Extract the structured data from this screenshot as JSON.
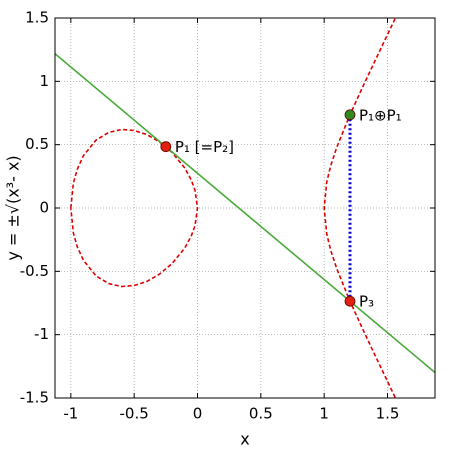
{
  "chart_data": {
    "type": "line",
    "xlabel": "x",
    "ylabel": "y = ±√(x³- x)",
    "xlim": [
      -1.125,
      1.875
    ],
    "ylim": [
      -1.5,
      1.5
    ],
    "xticks": [
      -1,
      -0.5,
      0,
      0.5,
      1,
      1.5
    ],
    "yticks": [
      -1.5,
      -1,
      -0.5,
      0,
      0.5,
      1,
      1.5
    ],
    "grid": true,
    "series": [
      {
        "color": "#e00000",
        "dash": true,
        "x": [
          -1,
          -0.98,
          -0.95,
          -0.9,
          -0.8,
          -0.7,
          -0.6,
          -0.5,
          -0.4,
          -0.3,
          -0.2,
          -0.1,
          -0.05,
          -0.02,
          0,
          -0.02,
          -0.05,
          -0.1,
          -0.2,
          -0.3,
          -0.4,
          -0.5,
          -0.6,
          -0.7,
          -0.8,
          -0.9,
          -0.95,
          -0.98,
          -1,
          null,
          1.56,
          1.5,
          1.4,
          1.3,
          1.2,
          1.1,
          1.05,
          1.02,
          1,
          1.02,
          1.05,
          1.1,
          1.2,
          1.3,
          1.4,
          1.5,
          1.56
        ],
        "values": [
          0,
          0.197,
          0.304,
          0.414,
          0.537,
          0.597,
          0.62,
          0.612,
          0.58,
          0.522,
          0.438,
          0.315,
          0.223,
          0.141,
          0,
          -0.141,
          -0.223,
          -0.315,
          -0.438,
          -0.522,
          -0.58,
          -0.612,
          -0.62,
          -0.597,
          -0.537,
          -0.414,
          -0.304,
          -0.197,
          0,
          null,
          -1.495,
          -1.369,
          -1.159,
          -0.947,
          -0.727,
          -0.481,
          -0.328,
          -0.203,
          0,
          0.203,
          0.328,
          0.481,
          0.727,
          0.947,
          1.159,
          1.369,
          1.495
        ]
      },
      {
        "color": "#4aaa3a",
        "dash": false,
        "x": [
          -1.125,
          1.875
        ],
        "values": [
          1.218,
          -1.299
        ]
      },
      {
        "color": "#0000dd",
        "dash": true,
        "dotted": true,
        "x": [
          1.204,
          1.204
        ],
        "values": [
          -0.736,
          0.736
        ]
      }
    ],
    "points": [
      {
        "label": "P₁ [=P₂]",
        "x": -0.25,
        "y": 0.484,
        "color": "#e02010"
      },
      {
        "label": "P₁⊕P₁",
        "x": 1.204,
        "y": 0.736,
        "color": "#2e8b20"
      },
      {
        "label": "P₃",
        "x": 1.204,
        "y": -0.736,
        "color": "#e02010"
      }
    ]
  }
}
